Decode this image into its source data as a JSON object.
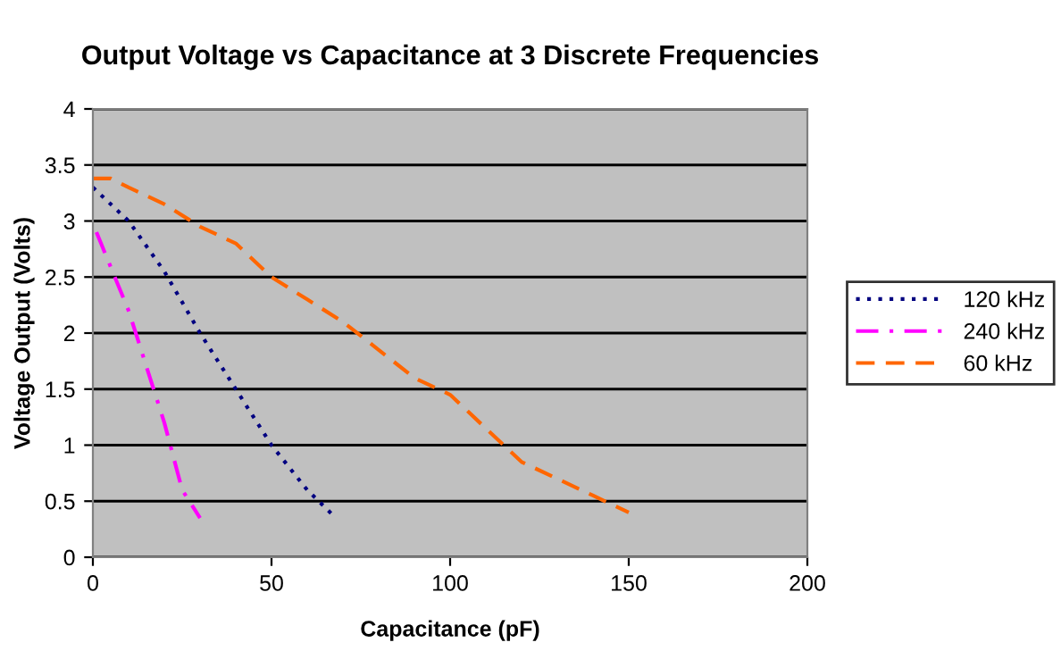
{
  "chart_data": {
    "type": "line",
    "title": "Output Voltage vs Capacitance at 3 Discrete Frequencies",
    "xlabel": "Capacitance (pF)",
    "ylabel": "Voltage Output (Volts)",
    "series": [
      {
        "name": "120 kHz",
        "color": "#000080",
        "line_style": "dotted",
        "x": [
          0,
          10,
          20,
          30,
          40,
          50,
          60,
          68
        ],
        "values": [
          3.3,
          3.0,
          2.55,
          2.0,
          1.5,
          1.0,
          0.6,
          0.35
        ]
      },
      {
        "name": "240 kHz",
        "color": "#ff00ff",
        "line_style": "dashdot",
        "x": [
          1,
          10,
          20,
          25,
          30
        ],
        "values": [
          2.9,
          2.2,
          1.2,
          0.6,
          0.35
        ]
      },
      {
        "name": "60 kHz",
        "color": "#ff6600",
        "line_style": "dashed",
        "x": [
          0,
          5,
          10,
          20,
          30,
          40,
          50,
          60,
          70,
          80,
          90,
          100,
          110,
          120,
          130,
          140,
          150
        ],
        "values": [
          3.38,
          3.38,
          3.3,
          3.15,
          2.95,
          2.8,
          2.5,
          2.3,
          2.1,
          1.85,
          1.6,
          1.45,
          1.15,
          0.85,
          0.7,
          0.55,
          0.4
        ]
      }
    ],
    "xlim": [
      0,
      200
    ],
    "xticks": [
      0,
      50,
      100,
      150,
      200
    ],
    "ylim": [
      0,
      4
    ],
    "yticks": [
      0,
      0.5,
      1,
      1.5,
      2,
      2.5,
      3,
      3.5,
      4
    ],
    "grid": "y",
    "legend": "right",
    "marker": "none"
  }
}
